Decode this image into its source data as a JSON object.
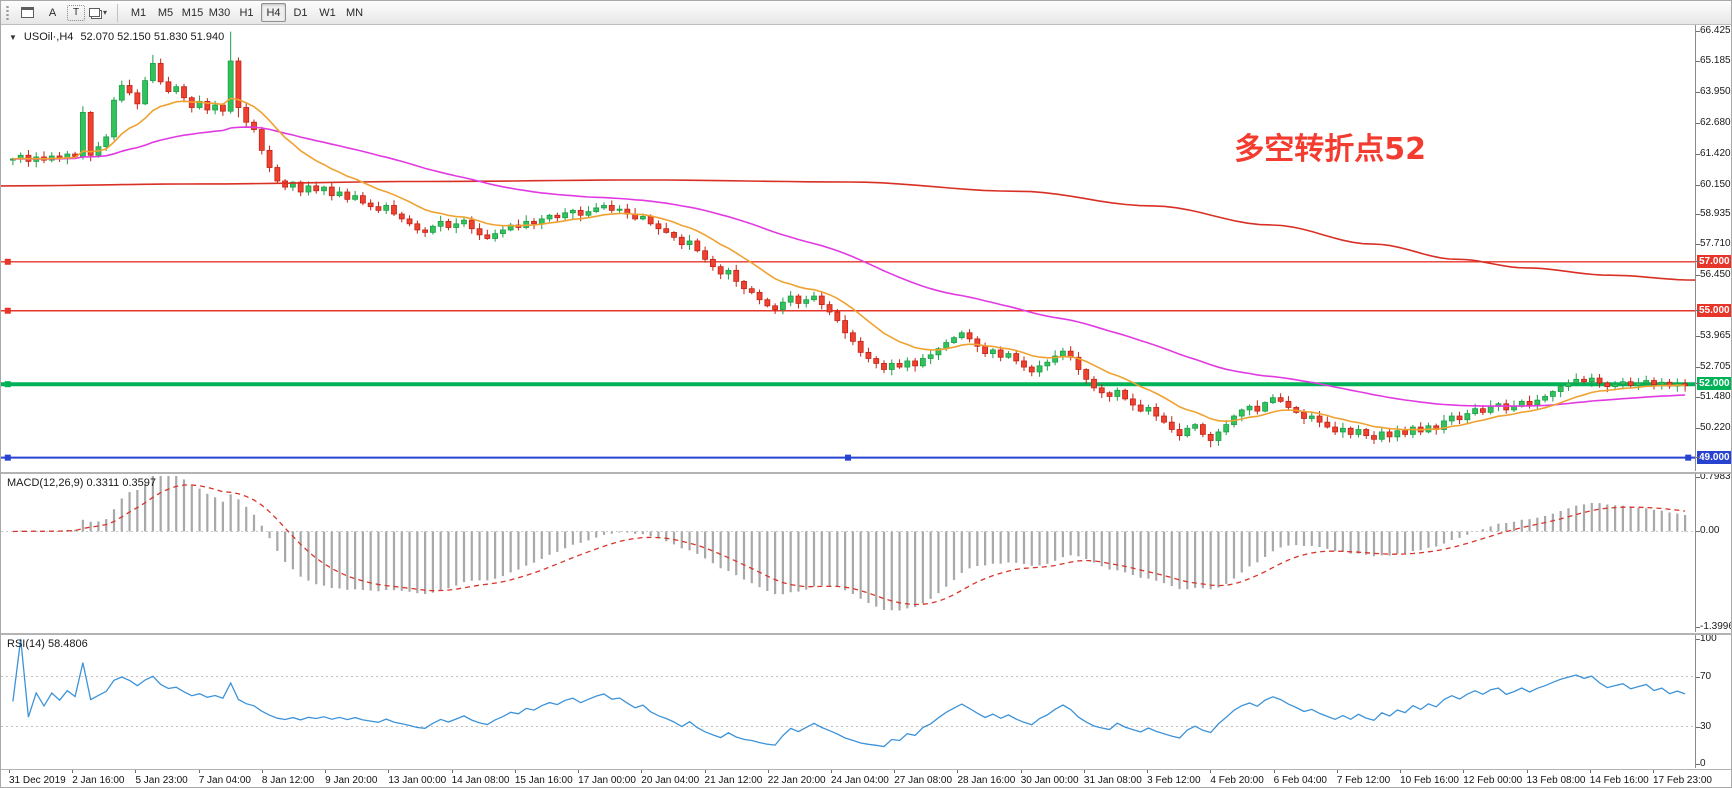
{
  "toolbar": {
    "tools": [
      {
        "label": "A"
      },
      {
        "label": "T"
      }
    ],
    "caret_glyph": "▾",
    "timeframes": [
      {
        "label": "M1"
      },
      {
        "label": "M5"
      },
      {
        "label": "M15"
      },
      {
        "label": "M30"
      },
      {
        "label": "H1"
      },
      {
        "label": "H4"
      },
      {
        "label": "D1"
      },
      {
        "label": "W1"
      },
      {
        "label": "MN"
      }
    ],
    "active_timeframe": "H4"
  },
  "icons": {
    "title_marker": "▼",
    "dropdown_caret": "▾"
  },
  "chart_data": {
    "type": "candlestick",
    "symbol": "USOil",
    "timeframe": "H4",
    "symbol_title": "USOil·,H4",
    "ohlc_text": "52.070 52.150 51.830 51.940",
    "ohlc": {
      "open": 52.07,
      "high": 52.15,
      "low": 51.83,
      "close": 51.94
    },
    "x_labels": [
      "31 Dec 2019",
      "2 Jan 16:00",
      "5 Jan 23:00",
      "7 Jan 04:00",
      "8 Jan 12:00",
      "9 Jan 20:00",
      "13 Jan 00:00",
      "14 Jan 08:00",
      "15 Jan 16:00",
      "17 Jan 00:00",
      "20 Jan 04:00",
      "21 Jan 12:00",
      "22 Jan 20:00",
      "24 Jan 04:00",
      "27 Jan 08:00",
      "28 Jan 16:00",
      "30 Jan 00:00",
      "31 Jan 08:00",
      "3 Feb 12:00",
      "4 Feb 20:00",
      "6 Feb 04:00",
      "7 Feb 12:00",
      "10 Feb 16:00",
      "12 Feb 00:00",
      "13 Feb 08:00",
      "14 Feb 16:00",
      "17 Feb 23:00"
    ],
    "price_axis_ticks": [
      66.425,
      65.185,
      63.95,
      62.68,
      61.42,
      60.15,
      58.935,
      57.71,
      56.45,
      53.965,
      52.705,
      51.48,
      50.22
    ],
    "price_range": [
      48.7,
      66.425
    ],
    "first_open": 61.15,
    "closes": [
      61.2,
      61.35,
      61.1,
      61.28,
      61.15,
      61.32,
      61.22,
      61.4,
      61.3,
      63.1,
      61.35,
      61.7,
      62.1,
      63.6,
      64.2,
      63.9,
      63.45,
      64.4,
      65.1,
      64.35,
      63.95,
      64.15,
      63.7,
      63.3,
      63.55,
      63.2,
      63.4,
      63.15,
      65.2,
      63.3,
      62.7,
      62.4,
      61.55,
      60.85,
      60.3,
      60.05,
      60.25,
      59.85,
      60.1,
      59.9,
      60.05,
      59.7,
      59.85,
      59.55,
      59.7,
      59.4,
      59.25,
      59.1,
      59.3,
      58.95,
      58.75,
      58.55,
      58.3,
      58.2,
      58.45,
      58.65,
      58.4,
      58.55,
      58.7,
      58.35,
      58.1,
      57.95,
      58.15,
      58.3,
      58.5,
      58.4,
      58.65,
      58.55,
      58.75,
      58.9,
      58.8,
      59.0,
      59.1,
      58.9,
      59.05,
      59.2,
      59.3,
      59.1,
      59.15,
      58.95,
      58.75,
      58.85,
      58.55,
      58.35,
      58.2,
      58.0,
      57.7,
      57.85,
      57.45,
      57.1,
      56.8,
      56.5,
      56.65,
      56.2,
      55.9,
      55.75,
      55.45,
      55.2,
      55.05,
      55.35,
      55.6,
      55.3,
      55.45,
      55.6,
      55.25,
      54.95,
      54.6,
      54.1,
      53.75,
      53.3,
      53.05,
      52.85,
      52.6,
      52.85,
      52.7,
      52.95,
      52.75,
      53.05,
      53.2,
      53.45,
      53.7,
      53.9,
      54.1,
      53.85,
      53.55,
      53.25,
      53.4,
      53.1,
      53.25,
      52.95,
      52.7,
      52.5,
      52.75,
      52.9,
      53.15,
      53.35,
      53.1,
      52.6,
      52.2,
      51.85,
      51.65,
      51.5,
      51.75,
      51.4,
      51.15,
      50.9,
      51.05,
      50.7,
      50.45,
      50.15,
      49.9,
      50.2,
      50.35,
      49.95,
      49.7,
      50.05,
      50.35,
      50.7,
      50.95,
      51.1,
      50.9,
      51.25,
      51.45,
      51.3,
      51.05,
      50.85,
      50.6,
      50.7,
      50.45,
      50.25,
      50.05,
      50.2,
      49.95,
      50.15,
      49.9,
      49.75,
      50.05,
      49.85,
      50.1,
      49.95,
      50.25,
      50.05,
      50.3,
      50.15,
      50.5,
      50.7,
      50.55,
      50.8,
      51.0,
      50.85,
      51.1,
      51.2,
      50.95,
      51.1,
      51.3,
      51.15,
      51.35,
      51.5,
      51.7,
      51.9,
      52.05,
      52.2,
      52.1,
      52.25,
      52.05,
      51.9,
      52.0,
      52.1,
      51.95,
      52.05,
      52.15,
      51.98,
      52.08,
      51.92,
      52.02,
      51.94
    ],
    "wick_overrides": {
      "9": {
        "high": 63.35
      },
      "18": {
        "high": 65.45
      },
      "28": {
        "high": 66.4,
        "low": 63.05
      },
      "29": {
        "low": 62.9
      },
      "154": {
        "low": 49.42
      },
      "175": {
        "low": 49.56
      }
    },
    "up_color": "#31c25c",
    "up_border": "#1d9e49",
    "down_color": "#ef4130",
    "down_border": "#c22315",
    "ma_fast": {
      "period": 13,
      "color": "#efa231"
    },
    "ma_mid": {
      "period": 55,
      "color": "#e23ae2"
    },
    "ma_slow": {
      "color": "#d93025",
      "anchors": [
        [
          0,
          60.1
        ],
        [
          0.12,
          60.18
        ],
        [
          0.25,
          60.28
        ],
        [
          0.38,
          60.34
        ],
        [
          0.5,
          60.26
        ],
        [
          0.6,
          59.88
        ],
        [
          0.68,
          59.28
        ],
        [
          0.75,
          58.5
        ],
        [
          0.81,
          57.72
        ],
        [
          0.86,
          57.1
        ],
        [
          0.9,
          56.75
        ],
        [
          0.95,
          56.45
        ],
        [
          1.0,
          56.25
        ]
      ]
    },
    "h_lines": [
      {
        "price": 57.0,
        "label": "57.000",
        "color": "#e8352a",
        "width": 1.4,
        "handles": [
          0.004
        ]
      },
      {
        "price": 55.0,
        "label": "55.000",
        "color": "#e8352a",
        "width": 1.4,
        "handles": [
          0.004
        ]
      },
      {
        "price": 52.0,
        "label": "52.000",
        "color": "#00b257",
        "width": 4,
        "handles": [
          0.004
        ]
      },
      {
        "price": 49.0,
        "label": "49.000",
        "color": "#2743d0",
        "width": 2,
        "handles": [
          0.004,
          0.5,
          0.996
        ]
      }
    ],
    "annotation": {
      "text": "多空转折点52",
      "color": "#f43b2f",
      "x_frac": 0.728,
      "y_price": 61.2
    },
    "indicators": [
      {
        "name": "MACD",
        "label": "MACD(12,26,9) 0.3311 0.3597",
        "params": [
          12,
          26,
          9
        ],
        "values": [
          0.3311,
          0.3597
        ],
        "range": [
          -1.47,
          0.84
        ],
        "axis_ticks": [
          {
            "v": 0.7983,
            "label": "0.7983"
          },
          {
            "v": 0,
            "label": "0.00"
          },
          {
            "v": -1.3996,
            "label": "-1.3996"
          }
        ],
        "histogram_color": "#a8a8a8",
        "signal_color": "#d6362b"
      },
      {
        "name": "RSI",
        "label": "RSI(14) 58.4806",
        "period": 14,
        "value": 58.4806,
        "range": [
          0,
          100
        ],
        "levels": [
          70,
          30
        ],
        "axis_ticks": [
          {
            "v": 100,
            "label": "100"
          },
          {
            "v": 70,
            "label": "70"
          },
          {
            "v": 30,
            "label": "30"
          },
          {
            "v": 0,
            "label": "0"
          }
        ],
        "line_color": "#3d93d9",
        "level_color": "#c9bcbc"
      }
    ]
  }
}
